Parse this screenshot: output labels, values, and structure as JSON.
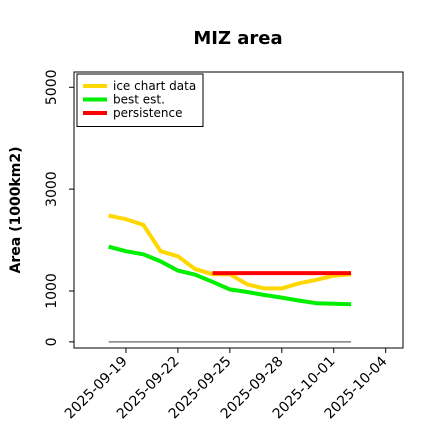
{
  "chart_data": {
    "type": "line",
    "title": "MIZ area",
    "xlabel": "",
    "ylabel": "Area (1000km2)",
    "x_ticks": [
      "2025-09-19",
      "2025-09-22",
      "2025-09-25",
      "2025-09-28",
      "2025-10-01",
      "2025-10-04"
    ],
    "y_ticks": [
      0,
      1000,
      3000,
      5000
    ],
    "xlim": [
      "2025-09-16",
      "2025-10-05"
    ],
    "ylim": [
      -120,
      5300
    ],
    "grid": false,
    "legend_position": "top-left",
    "series": [
      {
        "name": "ice chart data",
        "color": "#ffd700",
        "x": [
          "2025-09-18",
          "2025-09-19",
          "2025-09-20",
          "2025-09-21",
          "2025-09-22",
          "2025-09-23",
          "2025-09-24",
          "2025-09-25",
          "2025-09-26",
          "2025-09-27",
          "2025-09-28",
          "2025-09-29",
          "2025-09-30",
          "2025-10-01",
          "2025-10-02"
        ],
        "values": [
          2480,
          2410,
          2300,
          1780,
          1680,
          1430,
          1330,
          1330,
          1130,
          1050,
          1050,
          1150,
          1220,
          1300,
          1330
        ]
      },
      {
        "name": "best est.",
        "color": "#00ee00",
        "x": [
          "2025-09-18",
          "2025-09-19",
          "2025-09-20",
          "2025-09-21",
          "2025-09-22",
          "2025-09-23",
          "2025-09-24",
          "2025-09-25",
          "2025-09-26",
          "2025-09-27",
          "2025-09-28",
          "2025-09-29",
          "2025-09-30",
          "2025-10-01",
          "2025-10-02"
        ],
        "values": [
          1870,
          1780,
          1720,
          1580,
          1400,
          1320,
          1180,
          1030,
          980,
          920,
          870,
          810,
          760,
          750,
          740
        ]
      },
      {
        "name": "persistence",
        "color": "#ff0000",
        "x": [
          "2025-09-24",
          "2025-10-02"
        ],
        "values": [
          1350,
          1350
        ]
      },
      {
        "name": "",
        "color": "#808080",
        "x": [
          "2025-09-18",
          "2025-10-02"
        ],
        "values": [
          0,
          0
        ]
      }
    ]
  }
}
